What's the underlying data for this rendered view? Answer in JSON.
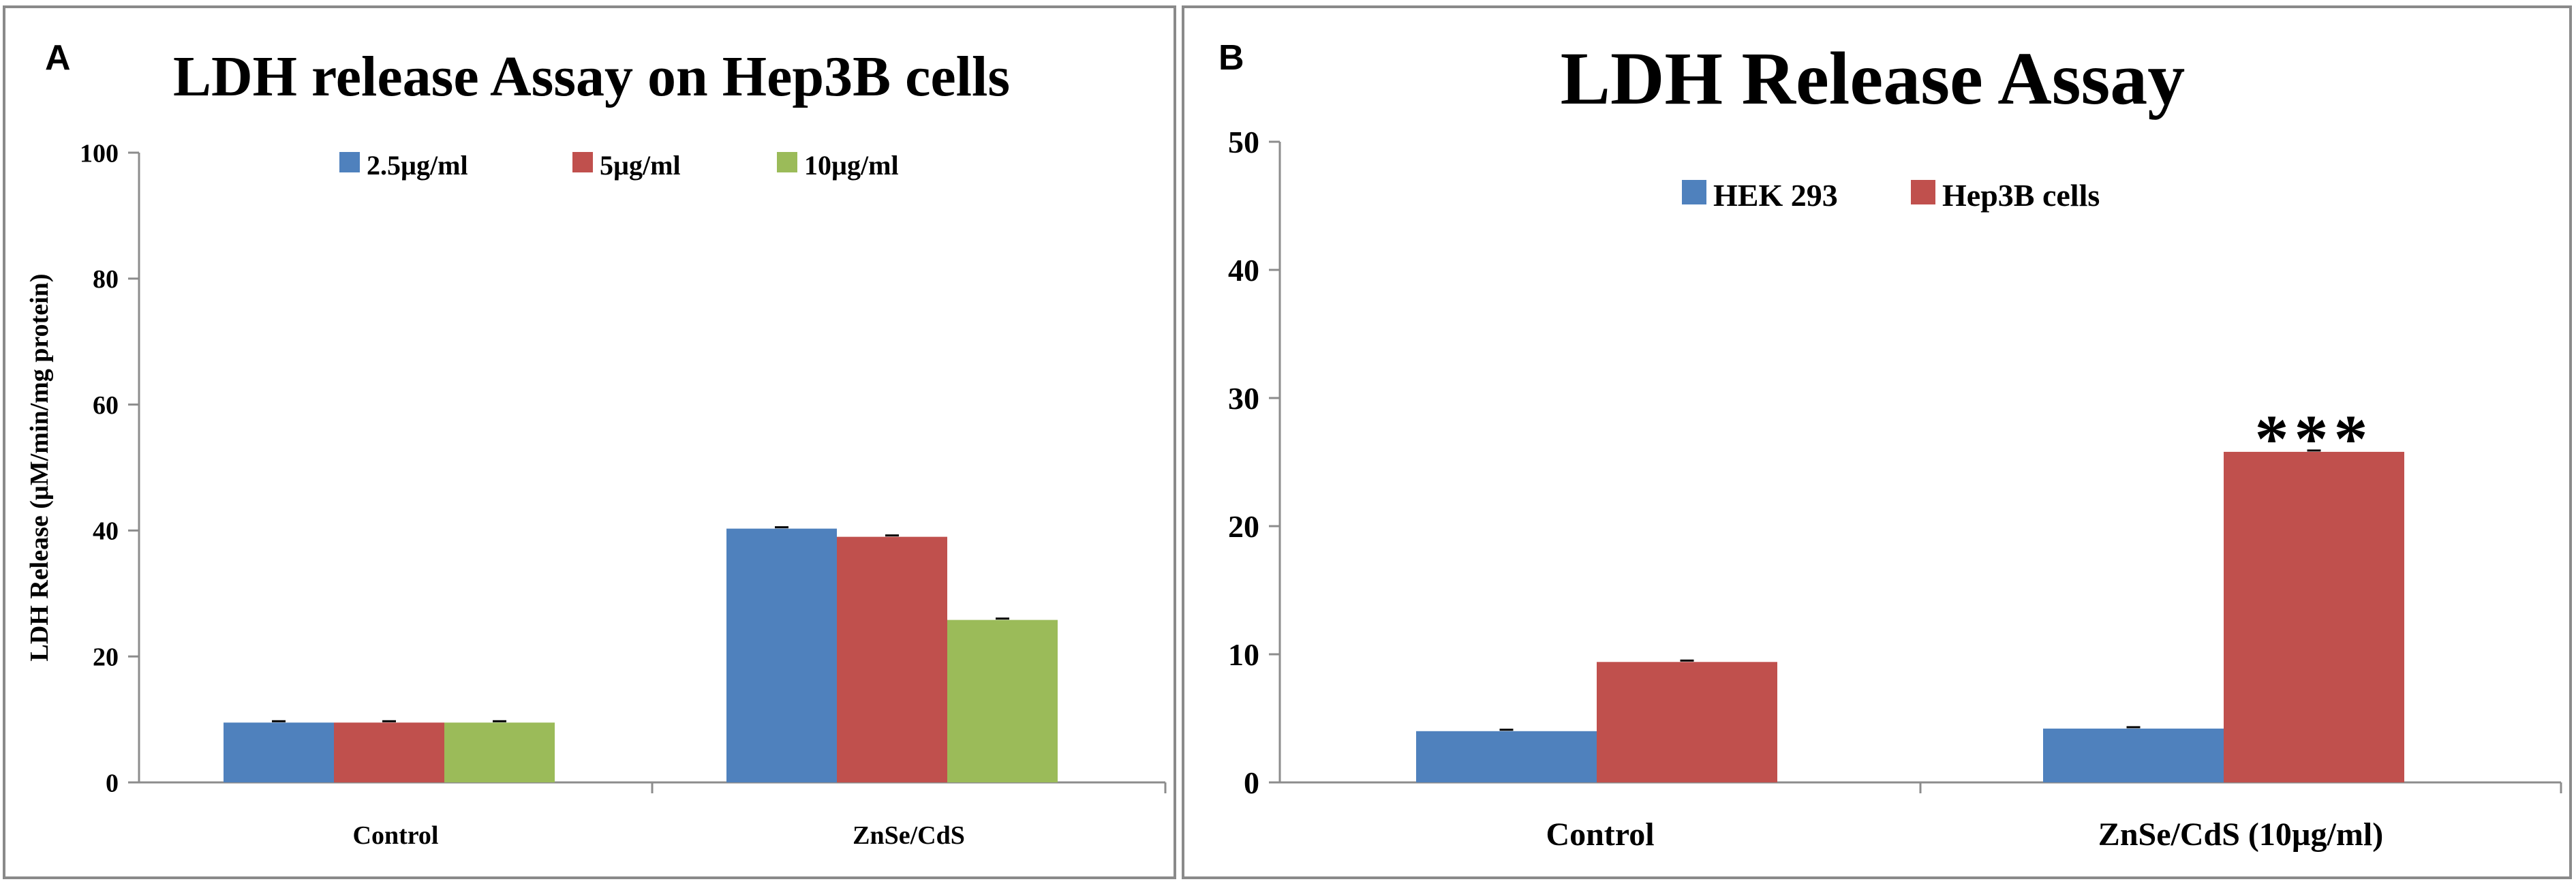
{
  "chart_data": [
    {
      "panel_label": "A",
      "type": "bar",
      "title": "LDH release Assay on Hep3B cells",
      "xlabel": "",
      "ylabel": "LDH Release (µM/min/mg protein)",
      "ylim": [
        0,
        100
      ],
      "yticks": [
        "0",
        "20",
        "40",
        "60",
        "80",
        "100"
      ],
      "categories": [
        "Control",
        "ZnSe/CdS"
      ],
      "series": [
        {
          "name": "2.5µg/ml",
          "color": "#4f81bd",
          "values": [
            9.5,
            40.3
          ]
        },
        {
          "name": "5µg/ml",
          "color": "#c0504d",
          "values": [
            9.5,
            39.0
          ]
        },
        {
          "name": "10µg/ml",
          "color": "#9bbb59",
          "values": [
            9.5,
            25.8
          ]
        }
      ],
      "legend": "top-center",
      "grid": false
    },
    {
      "panel_label": "B",
      "type": "bar",
      "title": "LDH Release Assay",
      "xlabel": "",
      "ylabel": "",
      "ylim": [
        0,
        50
      ],
      "yticks": [
        "0",
        "10",
        "20",
        "30",
        "40",
        "50"
      ],
      "categories": [
        "Control",
        "ZnSe/CdS (10µg/ml)"
      ],
      "series": [
        {
          "name": "HEK 293",
          "color": "#4f81bd",
          "values": [
            4.0,
            4.2
          ]
        },
        {
          "name": "Hep3B cells",
          "color": "#c0504d",
          "values": [
            9.4,
            25.8
          ]
        }
      ],
      "annotations": [
        {
          "text": "***",
          "category": 1,
          "series": 1
        }
      ],
      "legend": "top-center",
      "grid": false
    }
  ]
}
